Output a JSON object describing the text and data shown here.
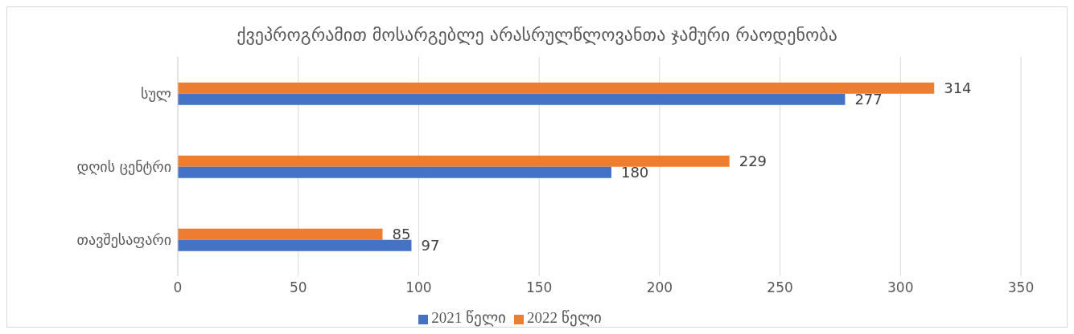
{
  "chart_data": {
    "type": "bar",
    "orientation": "horizontal",
    "title": "ქვეპროგრამით მოსარგებლე არასრულწლოვანთა ჯამური რაოდენობა",
    "categories": [
      "სულ",
      "დღის ცენტრი",
      "თავშესაფარი"
    ],
    "series": [
      {
        "name": "2022 წელი",
        "color": "#ed7d31",
        "values": [
          314,
          229,
          85
        ]
      },
      {
        "name": "2021 წელი",
        "color": "#4472c4",
        "values": [
          277,
          180,
          97
        ]
      }
    ],
    "xlim": [
      0,
      350
    ],
    "xticks": [
      0,
      50,
      100,
      150,
      200,
      250,
      300,
      350
    ],
    "grid": "x",
    "legend": "bottom",
    "data_labels": true
  }
}
